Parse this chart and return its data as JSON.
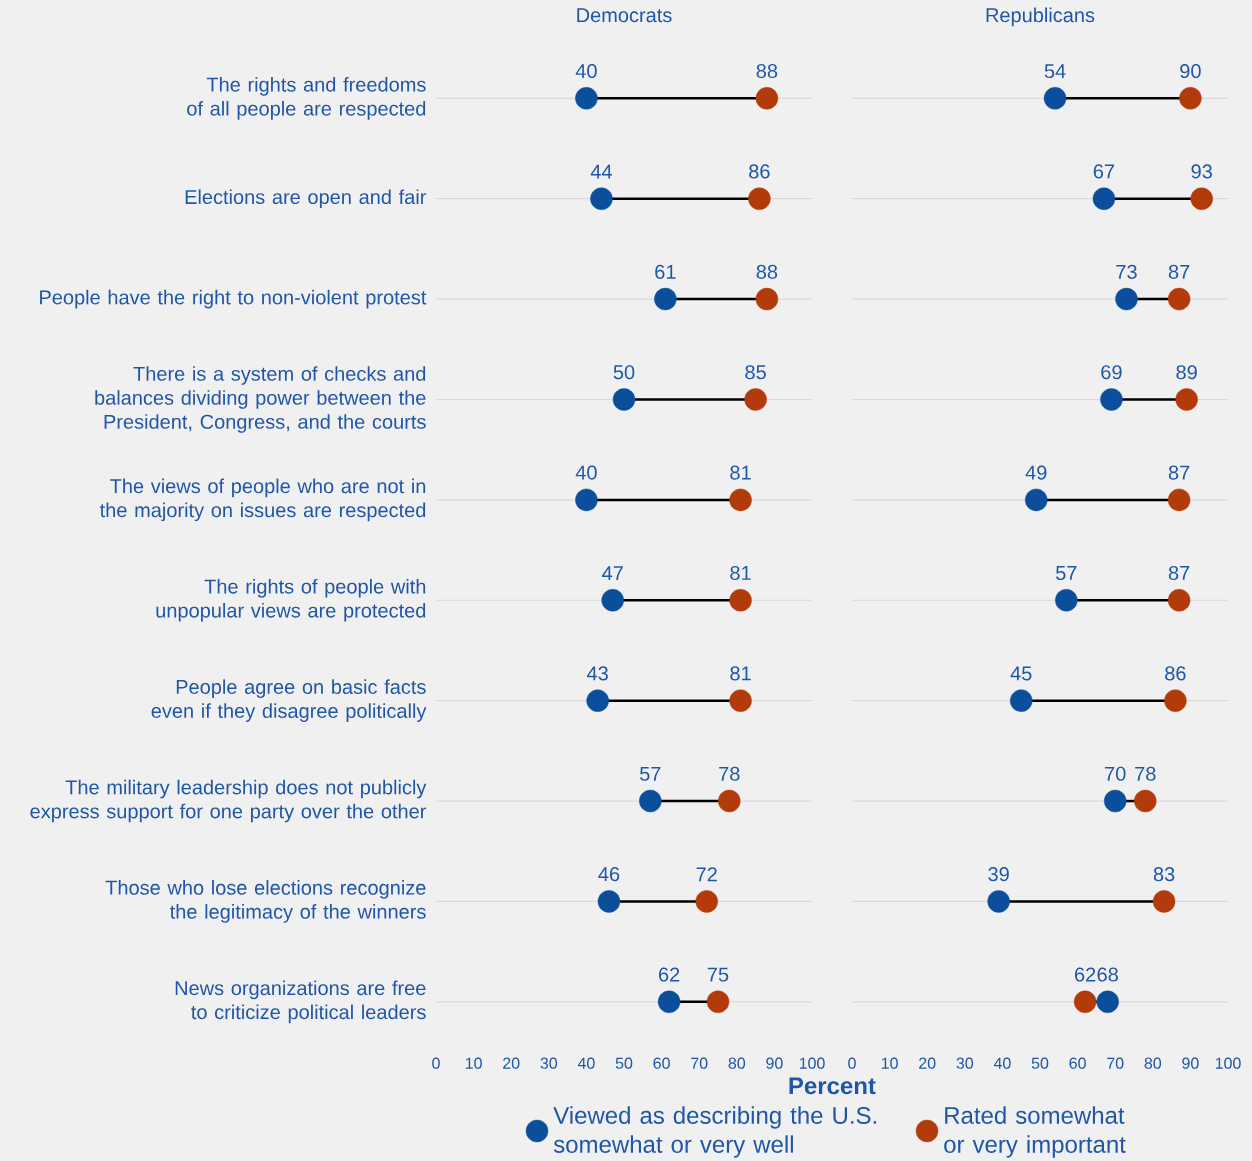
{
  "chart_data": [
    {
      "type": "scatter",
      "title": "Democrats",
      "orientation": "horizontal",
      "marker": "circle",
      "grid": "y",
      "legend": "bottom",
      "data_labels": true,
      "xlabel": "Percent",
      "categories": [
        "The rights and freedoms of all people are respected",
        "Elections are open and fair",
        "People have the right to non-violent protest",
        "There is a system of checks and balances dividing power between the President, Congress, and the courts",
        "The views of people who are not in the majority on issues are respected",
        "The rights of people with unpopular views are protected",
        "People agree on basic facts even if they disagree politically",
        "The military leadership does not publicly express support for one party over the other",
        "Those who lose elections recognize the legitimacy of the winners",
        "News organizations are free to criticize political leaders"
      ],
      "xlim": [
        0,
        100
      ],
      "xticks": [
        0,
        10,
        20,
        30,
        40,
        50,
        60,
        70,
        80,
        90,
        100
      ],
      "series": [
        {
          "name": "Viewed as describing the U.S. somewhat or very well",
          "color": "#0b4f9c",
          "values": [
            40,
            44,
            61,
            50,
            40,
            47,
            43,
            57,
            46,
            62
          ]
        },
        {
          "name": "Rated somewhat or very important",
          "color": "#b33a0a",
          "values": [
            88,
            86,
            88,
            85,
            81,
            81,
            81,
            78,
            72,
            75
          ]
        }
      ]
    },
    {
      "type": "scatter",
      "title": "Republicans",
      "orientation": "horizontal",
      "marker": "circle",
      "grid": "y",
      "data_labels": true,
      "tick_labels": "x",
      "categories": [
        null,
        null,
        null,
        null,
        null,
        null,
        null,
        null,
        null,
        null
      ],
      "xlim": [
        0,
        100
      ],
      "xticks": [
        0,
        10,
        20,
        30,
        40,
        50,
        60,
        70,
        80,
        90,
        100
      ],
      "series": [
        {
          "color": "#0b4f9c",
          "values": [
            54,
            67,
            73,
            69,
            49,
            57,
            45,
            70,
            39,
            68
          ]
        },
        {
          "color": "#b33a0a",
          "values": [
            90,
            93,
            87,
            89,
            87,
            87,
            86,
            78,
            83,
            62
          ]
        }
      ]
    }
  ]
}
